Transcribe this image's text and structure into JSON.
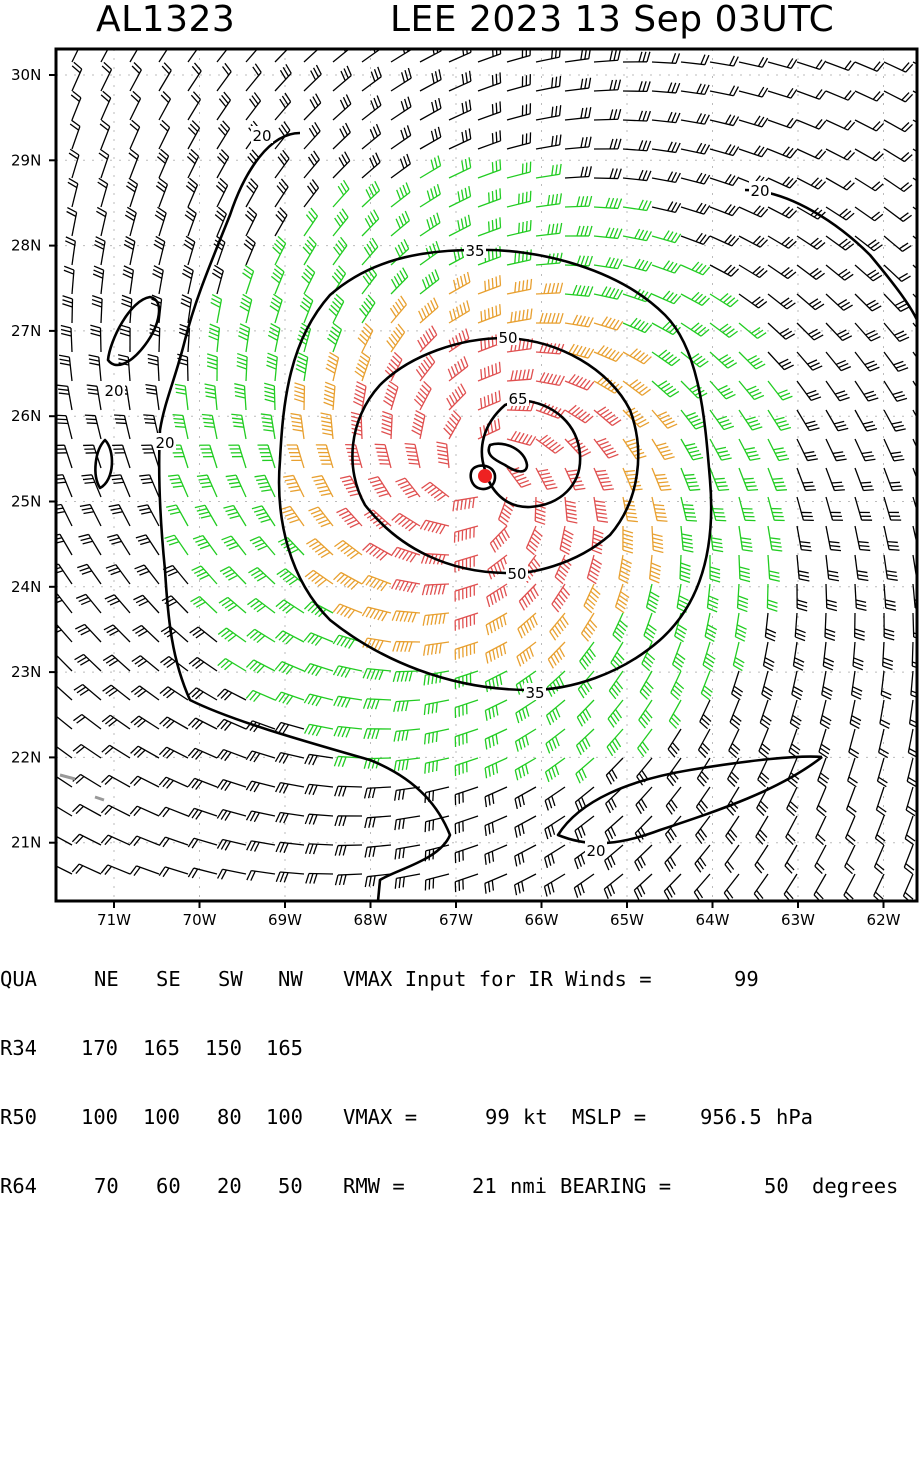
{
  "header": {
    "storm_id": "AL1323",
    "title": "LEE 2023 13 Sep 03UTC"
  },
  "map": {
    "lon_ticks": [
      "71W",
      "70W",
      "69W",
      "68W",
      "67W",
      "66W",
      "65W",
      "64W",
      "63W",
      "62W"
    ],
    "lat_ticks": [
      "30N",
      "29N",
      "28N",
      "27N",
      "26N",
      "25N",
      "24N",
      "23N",
      "22N",
      "21N"
    ],
    "contour_labels": [
      "20",
      "20",
      "20",
      "20",
      "20",
      "35",
      "35",
      "50",
      "50",
      "65"
    ],
    "center": {
      "lat": 25.3,
      "lon": 66.7
    },
    "colors": {
      "below_34kt": "#000000",
      "kt_34_49": "#22cc22",
      "kt_50_63": "#e8a030",
      "kt_64_plus": "#e05050",
      "center_marker": "#ee2222"
    }
  },
  "stats": {
    "header_row": [
      "QUA",
      "NE",
      "SE",
      "SW",
      "NW"
    ],
    "rows": [
      [
        "R34",
        "170",
        "165",
        "150",
        "165"
      ],
      [
        "R50",
        "100",
        "100",
        "80",
        "100"
      ],
      [
        "R64",
        "70",
        "60",
        "20",
        "50"
      ]
    ],
    "vmax_input_label": "VMAX Input for IR Winds =",
    "vmax_input_value": "99",
    "vmax_label": "VMAX =",
    "vmax_value": "99",
    "vmax_unit": "kt",
    "mslp_label": "MSLP =",
    "mslp_value": "956.5",
    "mslp_unit": "hPa",
    "rmw_label": "RMW =",
    "rmw_value": "21",
    "rmw_unit": "nmi",
    "bearing_label": "BEARING =",
    "bearing_value": "50",
    "bearing_unit": "degrees"
  }
}
